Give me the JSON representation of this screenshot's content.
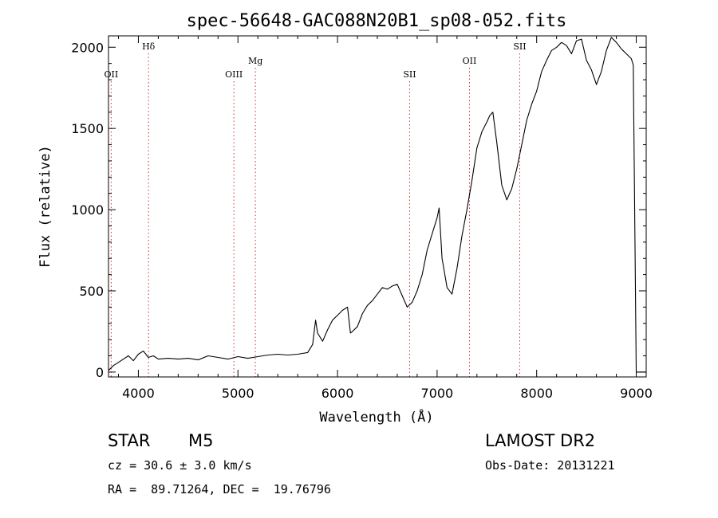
{
  "chart_data": {
    "type": "line",
    "title": "spec-56648-GAC088N20B1_sp08-052.fits",
    "xlabel": "Wavelength (Å)",
    "ylabel": "Flux (relative)",
    "xlim": [
      3700,
      9100
    ],
    "ylim": [
      -30,
      2070
    ],
    "x_ticks": [
      4000,
      5000,
      6000,
      7000,
      8000,
      9000
    ],
    "y_ticks": [
      0,
      500,
      1000,
      1500,
      2000
    ],
    "x_tick_labels": [
      "4000",
      "5000",
      "6000",
      "7000",
      "8000",
      "9000"
    ],
    "y_tick_labels": [
      "0",
      "500",
      "1000",
      "1500",
      "2000"
    ],
    "grid": false,
    "line_color": "#000000",
    "marker_color": "#cc3333",
    "lines": [
      {
        "label": "OII",
        "x": 3727,
        "level": "low"
      },
      {
        "label": "Hδ",
        "x": 4102,
        "level": "high"
      },
      {
        "label": "OIII",
        "x": 4959,
        "level": "low"
      },
      {
        "label": "Mg",
        "x": 5175,
        "level": "mid"
      },
      {
        "label": "SII",
        "x": 6724,
        "level": "low"
      },
      {
        "label": "OII",
        "x": 7325,
        "level": "mid"
      },
      {
        "label": "SII",
        "x": 7830,
        "level": "high"
      }
    ],
    "series": [
      {
        "x": [
          3700,
          3750,
          3800,
          3850,
          3900,
          3950,
          4000,
          4050,
          4100,
          4150,
          4200,
          4300,
          4400,
          4500,
          4600,
          4700,
          4800,
          4900,
          5000,
          5100,
          5200,
          5300,
          5400,
          5500,
          5600,
          5700,
          5750,
          5780,
          5800,
          5850,
          5900,
          5950,
          6000,
          6050,
          6100,
          6130,
          6150,
          6200,
          6250,
          6300,
          6350,
          6400,
          6450,
          6500,
          6550,
          6600,
          6650,
          6700,
          6750,
          6800,
          6850,
          6900,
          6950,
          7000,
          7020,
          7050,
          7100,
          7150,
          7200,
          7250,
          7300,
          7350,
          7400,
          7450,
          7500,
          7530,
          7560,
          7600,
          7650,
          7700,
          7750,
          7800,
          7850,
          7900,
          7950,
          8000,
          8050,
          8100,
          8150,
          8200,
          8250,
          8300,
          8350,
          8400,
          8450,
          8500,
          8550,
          8600,
          8650,
          8700,
          8750,
          8800,
          8850,
          8900,
          8950,
          8970,
          9000,
          9100
        ],
        "y": [
          10,
          40,
          60,
          80,
          100,
          70,
          110,
          130,
          90,
          100,
          80,
          85,
          80,
          85,
          75,
          100,
          90,
          80,
          95,
          85,
          95,
          105,
          110,
          105,
          110,
          120,
          170,
          320,
          240,
          190,
          260,
          320,
          350,
          380,
          400,
          240,
          250,
          280,
          360,
          410,
          440,
          480,
          520,
          510,
          530,
          540,
          470,
          400,
          430,
          500,
          600,
          750,
          850,
          950,
          1010,
          700,
          520,
          480,
          640,
          840,
          1000,
          1180,
          1380,
          1480,
          1540,
          1580,
          1600,
          1410,
          1150,
          1060,
          1130,
          1250,
          1400,
          1550,
          1650,
          1730,
          1850,
          1920,
          1980,
          2000,
          2030,
          2010,
          1960,
          2040,
          2050,
          1920,
          1860,
          1770,
          1850,
          1980,
          2060,
          2030,
          1990,
          1960,
          1930,
          1890,
          0,
          0
        ]
      }
    ]
  },
  "info": {
    "class_label": "STAR",
    "subclass_label": "M5",
    "survey_label": "LAMOST DR2",
    "cz_text": "cz = 30.6 ± 3.0 km/s",
    "obs_date_text": "Obs-Date: 20131221",
    "radec_text": "RA =  89.71264, DEC =  19.76796"
  }
}
